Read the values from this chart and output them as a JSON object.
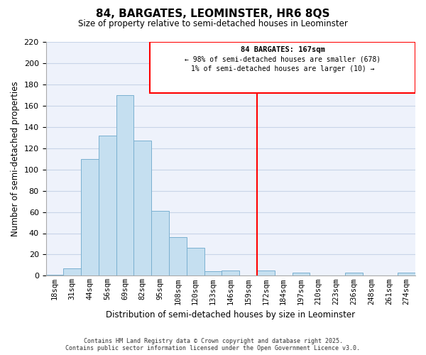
{
  "title": "84, BARGATES, LEOMINSTER, HR6 8QS",
  "subtitle": "Size of property relative to semi-detached houses in Leominster",
  "xlabel": "Distribution of semi-detached houses by size in Leominster",
  "ylabel": "Number of semi-detached properties",
  "bin_labels": [
    "18sqm",
    "31sqm",
    "44sqm",
    "56sqm",
    "69sqm",
    "82sqm",
    "95sqm",
    "108sqm",
    "120sqm",
    "133sqm",
    "146sqm",
    "159sqm",
    "172sqm",
    "184sqm",
    "197sqm",
    "210sqm",
    "223sqm",
    "236sqm",
    "248sqm",
    "261sqm",
    "274sqm"
  ],
  "bar_values": [
    1,
    7,
    110,
    132,
    170,
    127,
    61,
    36,
    26,
    4,
    5,
    0,
    5,
    0,
    3,
    0,
    0,
    3,
    0,
    0,
    3
  ],
  "bar_color": "#c5dff0",
  "bar_edge_color": "#7ab0d0",
  "vline_index": 12,
  "vline_label": "84 BARGATES: 167sqm",
  "annotation_smaller": "← 98% of semi-detached houses are smaller (678)",
  "annotation_larger": "1% of semi-detached houses are larger (10) →",
  "ylim": [
    0,
    220
  ],
  "yticks": [
    0,
    20,
    40,
    60,
    80,
    100,
    120,
    140,
    160,
    180,
    200,
    220
  ],
  "footer_line1": "Contains HM Land Registry data © Crown copyright and database right 2025.",
  "footer_line2": "Contains public sector information licensed under the Open Government Licence v3.0.",
  "bg_color": "#eef2fb",
  "grid_color": "#c8d4e8"
}
